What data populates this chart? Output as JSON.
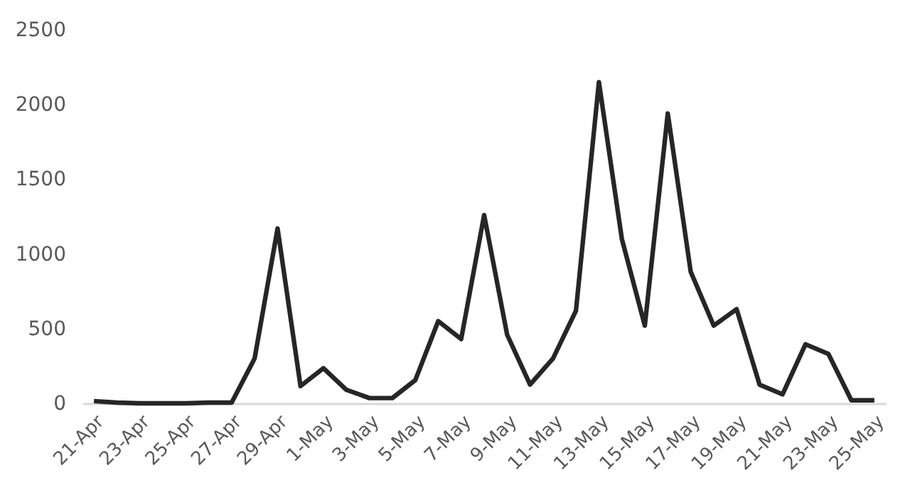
{
  "chart_data": {
    "type": "line",
    "categories": [
      "21-Apr",
      null,
      "23-Apr",
      null,
      "25-Apr",
      null,
      "27-Apr",
      null,
      "29-Apr",
      null,
      "1-May",
      null,
      "3-May",
      null,
      "5-May",
      null,
      "7-May",
      null,
      "9-May",
      null,
      "11-May",
      null,
      "13-May",
      null,
      "15-May",
      null,
      "17-May",
      null,
      "19-May",
      null,
      "21-May",
      null,
      "23-May",
      null,
      "25-May"
    ],
    "series": [
      {
        "color": "#262626",
        "values": [
          15,
          5,
          0,
          0,
          0,
          5,
          5,
          300,
          1170,
          115,
          235,
          90,
          35,
          35,
          155,
          550,
          430,
          1260,
          460,
          125,
          300,
          620,
          2150,
          1100,
          520,
          1940,
          880,
          520,
          630,
          125,
          60,
          395,
          330,
          20,
          20
        ]
      }
    ],
    "ylim": [
      0,
      2500
    ],
    "yticks": [
      0,
      500,
      1000,
      1500,
      2000,
      2500
    ],
    "grid": false,
    "marker": "none",
    "line_style": "solid"
  }
}
